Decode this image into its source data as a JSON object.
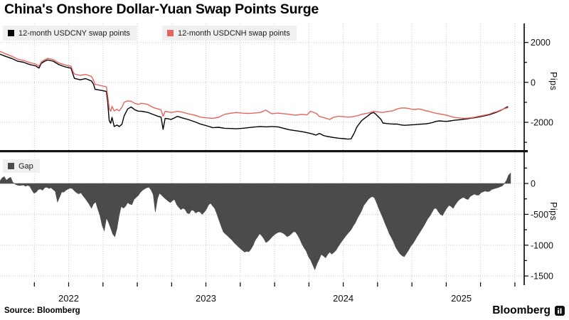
{
  "title": "China's Onshore Dollar-Yuan Swap Points Surge",
  "source_label": "Source: Bloomberg",
  "brand": "Bloomberg",
  "colors": {
    "cny": "#000000",
    "cnh": "#e7645e",
    "gap": "#4b4b4b",
    "grid": "#c9c9c9",
    "legend_bg": "#f0f0f0",
    "axis": "#000000"
  },
  "x_axis": {
    "tick_start": 2022.25,
    "tick_step": 0.25,
    "tick_end": 2025.75,
    "year_labels": [
      {
        "label": "2022",
        "pos": 2022.5
      },
      {
        "label": "2023",
        "pos": 2023.5
      },
      {
        "label": "2024",
        "pos": 2024.5
      },
      {
        "label": "2025",
        "pos": 2025.36
      }
    ]
  },
  "chart_data": [
    {
      "panel": "top",
      "type": "line",
      "ylabel": "Pips",
      "xlim": [
        2022.0,
        2025.818
      ],
      "ylim": [
        -3390,
        2950
      ],
      "grid": true,
      "legend_position": "top-left",
      "yticks": [
        {
          "v": 2000,
          "label": "2000"
        },
        {
          "v": 0,
          "label": "0"
        },
        {
          "v": -2000,
          "label": "-2000"
        }
      ],
      "yticks_minor": [
        1000,
        -1000,
        -3000
      ],
      "legend": [
        {
          "label": "12-month USDCNY swap points",
          "color_key": "cny"
        },
        {
          "label": "12-month USDCNH swap points",
          "color_key": "cnh"
        }
      ],
      "x": [
        2022.0,
        2022.041,
        2022.088,
        2022.129,
        2022.17,
        2022.217,
        2022.258,
        2022.284,
        2022.3,
        2022.325,
        2022.346,
        2022.387,
        2022.429,
        2022.475,
        2022.517,
        2022.532,
        2022.542,
        2022.584,
        2022.625,
        2022.666,
        2022.682,
        2022.692,
        2022.733,
        2022.775,
        2022.785,
        2022.795,
        2022.806,
        2022.816,
        2022.832,
        2022.852,
        2022.868,
        2022.888,
        2022.904,
        2022.93,
        2022.956,
        2022.981,
        2023.007,
        2023.033,
        2023.074,
        2023.121,
        2023.147,
        2023.173,
        2023.188,
        2023.203,
        2023.229,
        2023.245,
        2023.271,
        2023.291,
        2023.333,
        2023.369,
        2023.42,
        2023.462,
        2023.508,
        2023.55,
        2023.591,
        2023.637,
        2023.679,
        2023.72,
        2023.766,
        2023.808,
        2023.849,
        2023.896,
        2023.937,
        2023.978,
        2024.025,
        2024.066,
        2024.107,
        2024.154,
        2024.195,
        2024.236,
        2024.262,
        2024.283,
        2024.298,
        2024.309,
        2024.324,
        2024.34,
        2024.355,
        2024.376,
        2024.402,
        2024.428,
        2024.464,
        2024.505,
        2024.531,
        2024.557,
        2024.583,
        2024.598,
        2024.619,
        2024.634,
        2024.655,
        2024.675,
        2024.701,
        2024.722,
        2024.738,
        2024.753,
        2024.774,
        2024.789,
        2024.815,
        2024.841,
        2024.867,
        2024.893,
        2024.918,
        2024.944,
        2024.97,
        2024.996,
        2025.022,
        2025.048,
        2025.073,
        2025.099,
        2025.125,
        2025.151,
        2025.177,
        2025.203,
        2025.228,
        2025.254,
        2025.28,
        2025.306,
        2025.332,
        2025.357,
        2025.383,
        2025.409,
        2025.435,
        2025.461,
        2025.487,
        2025.512,
        2025.538,
        2025.564,
        2025.59,
        2025.616,
        2025.642,
        2025.667,
        2025.683,
        2025.698
      ],
      "series": [
        {
          "name": "12-month USDCNY swap points",
          "color_key": "cny",
          "y": [
            1414,
            1300,
            1190,
            1060,
            1010,
            890,
            830,
            712,
            947,
            1060,
            1123,
            1063,
            888,
            772,
            712,
            400,
            200,
            130,
            186,
            70,
            -100,
            -350,
            -396,
            -456,
            -1000,
            -1900,
            -2050,
            -1750,
            -2210,
            -2140,
            -2210,
            -2100,
            -1680,
            -1330,
            -1230,
            -1370,
            -1440,
            -1449,
            -1500,
            -1625,
            -1690,
            -1740,
            -2350,
            -1800,
            -1830,
            -1860,
            -1780,
            -1700,
            -1790,
            -1860,
            -1980,
            -2095,
            -2180,
            -2270,
            -2250,
            -2300,
            -2310,
            -2326,
            -2300,
            -2270,
            -2240,
            -2210,
            -2230,
            -2210,
            -2230,
            -2300,
            -2370,
            -2420,
            -2460,
            -2520,
            -2560,
            -2600,
            -2640,
            -2620,
            -2560,
            -2600,
            -2660,
            -2700,
            -2730,
            -2760,
            -2795,
            -2820,
            -2840,
            -2830,
            -2500,
            -2250,
            -2050,
            -1920,
            -1800,
            -1700,
            -1560,
            -1510,
            -1600,
            -1700,
            -1850,
            -2035,
            -2060,
            -2080,
            -2090,
            -2090,
            -2130,
            -2150,
            -2140,
            -2130,
            -2120,
            -2100,
            -2090,
            -2080,
            -2050,
            -2010,
            -1950,
            -1930,
            -1945,
            -1955,
            -1930,
            -1900,
            -1885,
            -1865,
            -1845,
            -1820,
            -1790,
            -1765,
            -1730,
            -1700,
            -1660,
            -1620,
            -1560,
            -1500,
            -1420,
            -1330,
            -1270,
            -1220
          ]
        },
        {
          "name": "12-month USDCNH swap points",
          "color_key": "cnh",
          "y": [
            1550,
            1430,
            1300,
            1160,
            1100,
            990,
            920,
            810,
            1010,
            1130,
            1200,
            1140,
            970,
            870,
            810,
            530,
            420,
            350,
            400,
            300,
            100,
            -100,
            -160,
            -220,
            -700,
            -1300,
            -1450,
            -1200,
            -1430,
            -1350,
            -1430,
            -1250,
            -1000,
            -925,
            -950,
            -1050,
            -1100,
            -1050,
            -1100,
            -1274,
            -1320,
            -1380,
            -1700,
            -1450,
            -1480,
            -1509,
            -1480,
            -1449,
            -1500,
            -1569,
            -1650,
            -1744,
            -1780,
            -1800,
            -1750,
            -1600,
            -1550,
            -1510,
            -1540,
            -1560,
            -1540,
            -1510,
            -1393,
            -1569,
            -1540,
            -1569,
            -1600,
            -1650,
            -1600,
            -1630,
            -1450,
            -1500,
            -1550,
            -1580,
            -1700,
            -1730,
            -1760,
            -1800,
            -1860,
            -1750,
            -1700,
            -1720,
            -1740,
            -1730,
            -1700,
            -1680,
            -1640,
            -1600,
            -1570,
            -1550,
            -1500,
            -1450,
            -1470,
            -1480,
            -1500,
            -1510,
            -1470,
            -1440,
            -1410,
            -1330,
            -1290,
            -1280,
            -1300,
            -1340,
            -1360,
            -1330,
            -1360,
            -1420,
            -1450,
            -1510,
            -1550,
            -1580,
            -1610,
            -1650,
            -1700,
            -1750,
            -1775,
            -1790,
            -1800,
            -1790,
            -1770,
            -1740,
            -1700,
            -1670,
            -1630,
            -1590,
            -1520,
            -1470,
            -1400,
            -1335,
            -1300,
            -1270
          ]
        }
      ]
    },
    {
      "panel": "bottom",
      "type": "area",
      "ylabel": "Pips",
      "xlim": [
        2022.0,
        2025.818
      ],
      "ylim": [
        -1602,
        495
      ],
      "grid": true,
      "legend_position": "top-left",
      "yticks": [
        {
          "v": 0,
          "label": "0"
        },
        {
          "v": -500,
          "label": "-500"
        },
        {
          "v": -1000,
          "label": "-1000"
        },
        {
          "v": -1500,
          "label": "-1500"
        }
      ],
      "yticks_minor": [
        250,
        -250,
        -750,
        -1250
      ],
      "legend": [
        {
          "label": "Gap",
          "color_key": "gap"
        }
      ],
      "series": [
        {
          "name": "Gap",
          "color_key": "gap",
          "x_start": 2022.0,
          "x_step": 0.015496,
          "values": [
            40,
            90,
            110,
            50,
            80,
            100,
            20,
            -10,
            -25,
            -35,
            -30,
            -25,
            -45,
            -30,
            -45,
            -110,
            -160,
            -140,
            -100,
            -90,
            -110,
            -70,
            -60,
            -80,
            -70,
            -100,
            -130,
            -300,
            -220,
            -140,
            -140,
            -110,
            -90,
            -75,
            -85,
            -120,
            -150,
            -170,
            -150,
            -200,
            -240,
            -290,
            -340,
            -400,
            -330,
            -300,
            -420,
            -520,
            -680,
            -767,
            -560,
            -630,
            -720,
            -820,
            -862,
            -729,
            -520,
            -370,
            -400,
            -370,
            -310,
            -335,
            -345,
            -260,
            -225,
            -195,
            -145,
            -110,
            -88,
            -70,
            -62,
            -105,
            -180,
            -462,
            -250,
            -156,
            -190,
            -225,
            -255,
            -285,
            -310,
            -280,
            -260,
            -340,
            -385,
            -424,
            -400,
            -420,
            -480,
            -490,
            -430,
            -440,
            -480,
            -455,
            -460,
            -500,
            -465,
            -420,
            -350,
            -320,
            -366,
            -410,
            -500,
            -600,
            -700,
            -786,
            -820,
            -850,
            -885,
            -915,
            -958,
            -990,
            -1025,
            -1055,
            -1085,
            -1111,
            -1100,
            -1105,
            -1060,
            -1000,
            -920,
            -870,
            -815,
            -845,
            -895,
            -958,
            -935,
            -900,
            -860,
            -830,
            -805,
            -790,
            -790,
            -805,
            -830,
            -862,
            -845,
            -815,
            -780,
            -790,
            -844,
            -910,
            -990,
            -1045,
            -1100,
            -1187,
            -1240,
            -1320,
            -1397,
            -1300,
            -1230,
            -1149,
            -1175,
            -1206,
            -1150,
            -1111,
            -1145,
            -1115,
            -1080,
            -1020,
            -970,
            -920,
            -875,
            -830,
            -790,
            -750,
            -690,
            -640,
            -565,
            -505,
            -440,
            -355,
            -310,
            -262,
            -230,
            -212,
            -232,
            -310,
            -400,
            -480,
            -560,
            -650,
            -730,
            -815,
            -880,
            -950,
            -1034,
            -1090,
            -1140,
            -1170,
            -1187,
            -1135,
            -1085,
            -1020,
            -980,
            -925,
            -862,
            -810,
            -755,
            -700,
            -640,
            -576,
            -530,
            -470,
            -410,
            -400,
            -455,
            -500,
            -520,
            -455,
            -400,
            -355,
            -370,
            -404,
            -345,
            -295,
            -258,
            -238,
            -225,
            -250,
            -260,
            -210,
            -190,
            -172,
            -188,
            -190,
            -150,
            -138,
            -122,
            -132,
            -128,
            -100,
            -88,
            -78,
            -68,
            -55,
            -42,
            -5,
            45,
            130,
            170
          ]
        }
      ]
    }
  ]
}
